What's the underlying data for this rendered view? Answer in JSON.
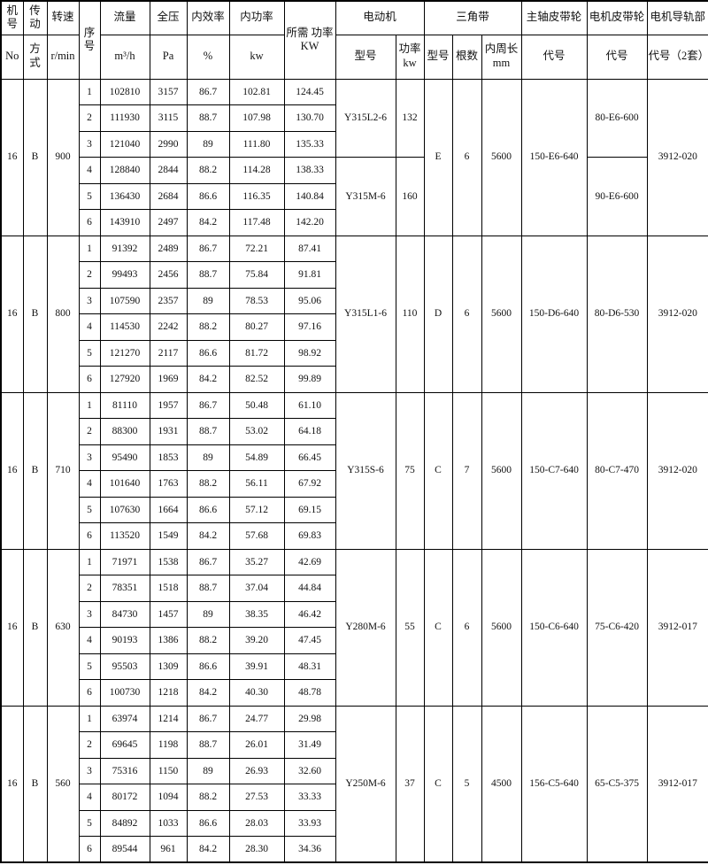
{
  "header": {
    "machine_no": [
      "机号",
      "No"
    ],
    "drive": [
      "传动",
      "方式"
    ],
    "speed": [
      "转速",
      "r/min"
    ],
    "seq": "序号",
    "flow": [
      "流量",
      "m³/h"
    ],
    "pressure": [
      "全压",
      "Pa"
    ],
    "efficiency": [
      "内效率",
      "%"
    ],
    "power": [
      "内功率",
      "kw"
    ],
    "required_power": "所需 功率 KW",
    "motor": {
      "title": "电动机",
      "model": "型号",
      "power": "功率 kw"
    },
    "belt": {
      "title": "三角带",
      "type": "型号",
      "count": "根数",
      "length": "内周长 mm"
    },
    "main_pulley": {
      "title": "主轴皮带轮",
      "code": "代号"
    },
    "motor_pulley": {
      "title": "电机皮带轮",
      "code": "代号"
    },
    "rail": {
      "title": "电机导轨部",
      "code": "代号（2套）"
    }
  },
  "groups": [
    {
      "no": "16",
      "drive": "B",
      "speed": "900",
      "rows": [
        [
          "1",
          "102810",
          "3157",
          "86.7",
          "102.81",
          "124.45"
        ],
        [
          "2",
          "111930",
          "3115",
          "88.7",
          "107.98",
          "130.70"
        ],
        [
          "3",
          "121040",
          "2990",
          "89",
          "111.80",
          "135.33"
        ],
        [
          "4",
          "128840",
          "2844",
          "88.2",
          "114.28",
          "138.33"
        ],
        [
          "5",
          "136430",
          "2684",
          "86.6",
          "116.35",
          "140.84"
        ],
        [
          "6",
          "143910",
          "2497",
          "84.2",
          "117.48",
          "142.20"
        ]
      ],
      "motors": [
        {
          "model": "Y315L2-6",
          "power": "132"
        },
        {
          "model": "Y315M-6",
          "power": "160"
        }
      ],
      "belt_type": "E",
      "belt_count": "6",
      "belt_length": "5600",
      "main_pulley": "150-E6-640",
      "motor_pulleys": [
        "80-E6-600",
        "90-E6-600"
      ],
      "rail": "3912-020"
    },
    {
      "no": "16",
      "drive": "B",
      "speed": "800",
      "rows": [
        [
          "1",
          "91392",
          "2489",
          "86.7",
          "72.21",
          "87.41"
        ],
        [
          "2",
          "99493",
          "2456",
          "88.7",
          "75.84",
          "91.81"
        ],
        [
          "3",
          "107590",
          "2357",
          "89",
          "78.53",
          "95.06"
        ],
        [
          "4",
          "114530",
          "2242",
          "88.2",
          "80.27",
          "97.16"
        ],
        [
          "5",
          "121270",
          "2117",
          "86.6",
          "81.72",
          "98.92"
        ],
        [
          "6",
          "127920",
          "1969",
          "84.2",
          "82.52",
          "99.89"
        ]
      ],
      "motors": [
        {
          "model": "Y315L1-6",
          "power": "110"
        }
      ],
      "belt_type": "D",
      "belt_count": "6",
      "belt_length": "5600",
      "main_pulley": "150-D6-640",
      "motor_pulleys": [
        "80-D6-530"
      ],
      "rail": "3912-020"
    },
    {
      "no": "16",
      "drive": "B",
      "speed": "710",
      "rows": [
        [
          "1",
          "81110",
          "1957",
          "86.7",
          "50.48",
          "61.10"
        ],
        [
          "2",
          "88300",
          "1931",
          "88.7",
          "53.02",
          "64.18"
        ],
        [
          "3",
          "95490",
          "1853",
          "89",
          "54.89",
          "66.45"
        ],
        [
          "4",
          "101640",
          "1763",
          "88.2",
          "56.11",
          "67.92"
        ],
        [
          "5",
          "107630",
          "1664",
          "86.6",
          "57.12",
          "69.15"
        ],
        [
          "6",
          "113520",
          "1549",
          "84.2",
          "57.68",
          "69.83"
        ]
      ],
      "motors": [
        {
          "model": "Y315S-6",
          "power": "75"
        }
      ],
      "belt_type": "C",
      "belt_count": "7",
      "belt_length": "5600",
      "main_pulley": "150-C7-640",
      "motor_pulleys": [
        "80-C7-470"
      ],
      "rail": "3912-020"
    },
    {
      "no": "16",
      "drive": "B",
      "speed": "630",
      "rows": [
        [
          "1",
          "71971",
          "1538",
          "86.7",
          "35.27",
          "42.69"
        ],
        [
          "2",
          "78351",
          "1518",
          "88.7",
          "37.04",
          "44.84"
        ],
        [
          "3",
          "84730",
          "1457",
          "89",
          "38.35",
          "46.42"
        ],
        [
          "4",
          "90193",
          "1386",
          "88.2",
          "39.20",
          "47.45"
        ],
        [
          "5",
          "95503",
          "1309",
          "86.6",
          "39.91",
          "48.31"
        ],
        [
          "6",
          "100730",
          "1218",
          "84.2",
          "40.30",
          "48.78"
        ]
      ],
      "motors": [
        {
          "model": "Y280M-6",
          "power": "55"
        }
      ],
      "belt_type": "C",
      "belt_count": "6",
      "belt_length": "5600",
      "main_pulley": "150-C6-640",
      "motor_pulleys": [
        "75-C6-420"
      ],
      "rail": "3912-017"
    },
    {
      "no": "16",
      "drive": "B",
      "speed": "560",
      "rows": [
        [
          "1",
          "63974",
          "1214",
          "86.7",
          "24.77",
          "29.98"
        ],
        [
          "2",
          "69645",
          "1198",
          "88.7",
          "26.01",
          "31.49"
        ],
        [
          "3",
          "75316",
          "1150",
          "89",
          "26.93",
          "32.60"
        ],
        [
          "4",
          "80172",
          "1094",
          "88.2",
          "27.53",
          "33.33"
        ],
        [
          "5",
          "84892",
          "1033",
          "86.6",
          "28.03",
          "33.93"
        ],
        [
          "6",
          "89544",
          "961",
          "84.2",
          "28.30",
          "34.36"
        ]
      ],
      "motors": [
        {
          "model": "Y250M-6",
          "power": "37"
        }
      ],
      "belt_type": "C",
      "belt_count": "5",
      "belt_length": "4500",
      "main_pulley": "156-C5-640",
      "motor_pulleys": [
        "65-C5-375"
      ],
      "rail": "3912-017"
    }
  ]
}
